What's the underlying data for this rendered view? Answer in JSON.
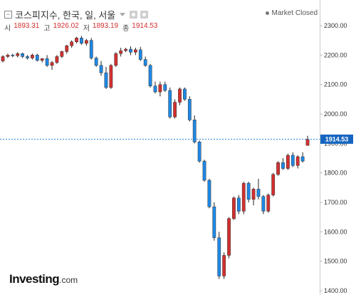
{
  "header": {
    "collapse_icon": "minus-box-icon",
    "title": "코스피지수, 한국, 일, 서울",
    "tool_icons": [
      "settings-icon",
      "camera-icon"
    ],
    "status": "Market Closed"
  },
  "ohlc": {
    "open_label": "시",
    "open": "1893.31",
    "high_label": "고",
    "high": "1926.02",
    "low_label": "저",
    "low": "1893.19",
    "close_label": "종",
    "close": "1914.53"
  },
  "logo": {
    "name": "Investing",
    "suffix": ".com"
  },
  "chart_data": {
    "type": "candlestick",
    "title": "코스피지수, 한국, 일, 서울",
    "ylim": [
      1390,
      2350
    ],
    "yticks": [
      "2300.00",
      "2200.00",
      "2100.00",
      "2000.00",
      "1900.00",
      "1800.00",
      "1700.00",
      "1600.00",
      "1500.00",
      "1400.00"
    ],
    "last_price": 1914.53,
    "last_price_label": "1914.53",
    "grid": false,
    "colors": {
      "up": "#d32f2f",
      "down": "#1e88e5",
      "price_line": "#1e88e5",
      "price_badge": "#1565c0"
    },
    "candles": [
      [
        2180,
        2200,
        2175,
        2195
      ],
      [
        2195,
        2205,
        2190,
        2200
      ],
      [
        2200,
        2205,
        2193,
        2198
      ],
      [
        2198,
        2210,
        2192,
        2205
      ],
      [
        2205,
        2208,
        2190,
        2195
      ],
      [
        2195,
        2200,
        2185,
        2190
      ],
      [
        2190,
        2205,
        2185,
        2200
      ],
      [
        2200,
        2205,
        2178,
        2182
      ],
      [
        2182,
        2190,
        2175,
        2188
      ],
      [
        2188,
        2200,
        2160,
        2165
      ],
      [
        2165,
        2180,
        2150,
        2175
      ],
      [
        2175,
        2200,
        2170,
        2195
      ],
      [
        2195,
        2215,
        2190,
        2212
      ],
      [
        2212,
        2235,
        2205,
        2232
      ],
      [
        2232,
        2250,
        2225,
        2245
      ],
      [
        2245,
        2262,
        2240,
        2258
      ],
      [
        2258,
        2265,
        2235,
        2240
      ],
      [
        2240,
        2255,
        2232,
        2250
      ],
      [
        2250,
        2258,
        2185,
        2190
      ],
      [
        2190,
        2195,
        2160,
        2165
      ],
      [
        2165,
        2180,
        2130,
        2140
      ],
      [
        2140,
        2160,
        2085,
        2090
      ],
      [
        2090,
        2170,
        2085,
        2165
      ],
      [
        2165,
        2210,
        2160,
        2205
      ],
      [
        2205,
        2225,
        2195,
        2215
      ],
      [
        2215,
        2225,
        2210,
        2220
      ],
      [
        2220,
        2230,
        2200,
        2210
      ],
      [
        2210,
        2225,
        2200,
        2218
      ],
      [
        2218,
        2228,
        2180,
        2185
      ],
      [
        2185,
        2195,
        2160,
        2165
      ],
      [
        2165,
        2170,
        2090,
        2095
      ],
      [
        2095,
        2110,
        2070,
        2075
      ],
      [
        2075,
        2110,
        2060,
        2100
      ],
      [
        2100,
        2110,
        2075,
        2080
      ],
      [
        2080,
        2090,
        1985,
        1990
      ],
      [
        1990,
        2050,
        1985,
        2040
      ],
      [
        2040,
        2090,
        2030,
        2085
      ],
      [
        2085,
        2090,
        2045,
        2050
      ],
      [
        2050,
        2060,
        1975,
        1980
      ],
      [
        1980,
        1995,
        1900,
        1905
      ],
      [
        1905,
        1910,
        1835,
        1840
      ],
      [
        1840,
        1845,
        1770,
        1775
      ],
      [
        1775,
        1780,
        1680,
        1685
      ],
      [
        1685,
        1700,
        1570,
        1580
      ],
      [
        1580,
        1600,
        1440,
        1450
      ],
      [
        1450,
        1530,
        1440,
        1520
      ],
      [
        1520,
        1650,
        1510,
        1645
      ],
      [
        1645,
        1720,
        1640,
        1715
      ],
      [
        1715,
        1725,
        1660,
        1670
      ],
      [
        1670,
        1770,
        1660,
        1765
      ],
      [
        1765,
        1770,
        1700,
        1710
      ],
      [
        1710,
        1750,
        1690,
        1745
      ],
      [
        1745,
        1780,
        1710,
        1720
      ],
      [
        1720,
        1725,
        1660,
        1670
      ],
      [
        1670,
        1730,
        1665,
        1725
      ],
      [
        1725,
        1800,
        1720,
        1795
      ],
      [
        1795,
        1840,
        1790,
        1835
      ],
      [
        1835,
        1850,
        1810,
        1815
      ],
      [
        1815,
        1865,
        1810,
        1860
      ],
      [
        1860,
        1870,
        1820,
        1825
      ],
      [
        1825,
        1860,
        1815,
        1855
      ],
      [
        1855,
        1870,
        1835,
        1840
      ],
      [
        1893.31,
        1926.02,
        1893.19,
        1914.53
      ]
    ]
  }
}
